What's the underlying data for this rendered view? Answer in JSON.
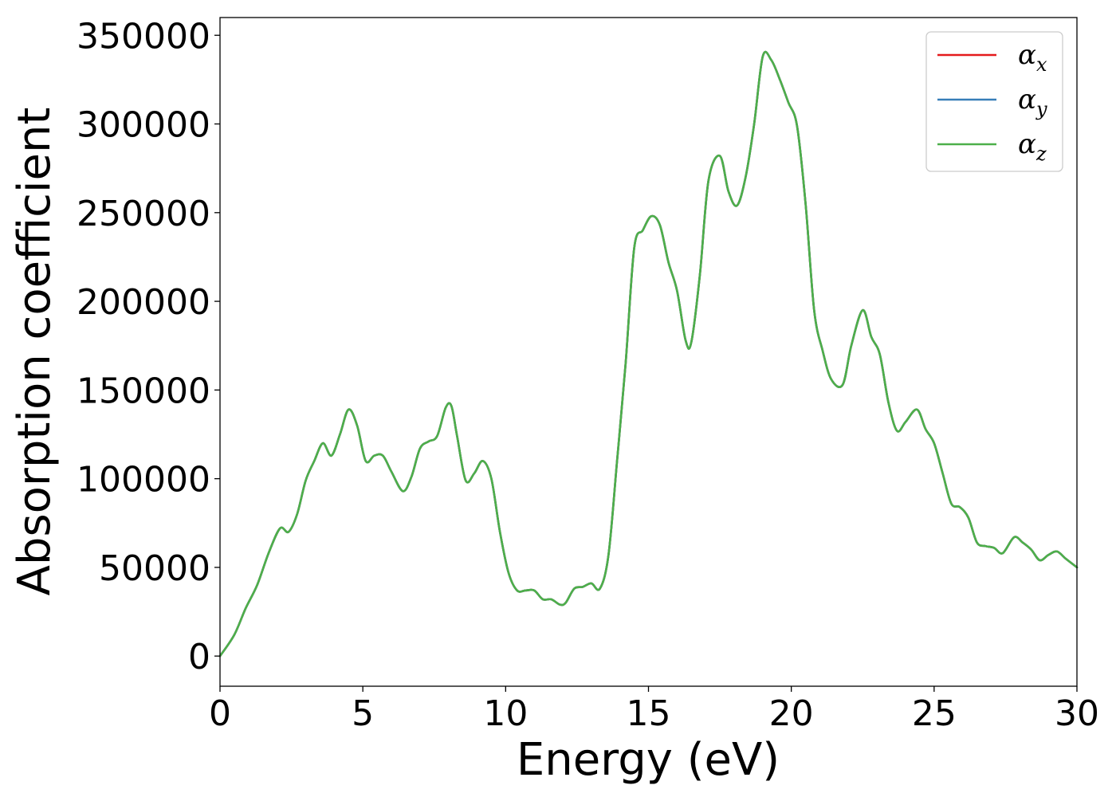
{
  "chart_data": {
    "type": "line",
    "xlabel": "Energy (eV)",
    "ylabel": "Absorption coefficient",
    "xlim": [
      0,
      30
    ],
    "ylim": [
      -17000,
      360000
    ],
    "xticks": [
      0,
      5,
      10,
      15,
      20,
      25,
      30
    ],
    "xtick_labels": [
      "0",
      "5",
      "10",
      "15",
      "20",
      "25",
      "30"
    ],
    "yticks": [
      0,
      50000,
      100000,
      150000,
      200000,
      250000,
      300000,
      350000
    ],
    "ytick_labels": [
      "0",
      "50000",
      "100000",
      "150000",
      "200000",
      "250000",
      "300000",
      "350000"
    ],
    "grid": false,
    "legend": {
      "position": "top-right",
      "entries": [
        {
          "symbol": "α",
          "sub": "x",
          "color": "#e41a1c"
        },
        {
          "symbol": "α",
          "sub": "y",
          "color": "#377eb8"
        },
        {
          "symbol": "α",
          "sub": "z",
          "color": "#4daf4a"
        }
      ]
    },
    "x": [
      0,
      0.5,
      0.9,
      1.3,
      1.7,
      2.1,
      2.4,
      2.7,
      3.0,
      3.3,
      3.6,
      3.9,
      4.2,
      4.5,
      4.8,
      5.1,
      5.4,
      5.7,
      6.0,
      6.4,
      6.7,
      7.0,
      7.3,
      7.6,
      7.9,
      8.1,
      8.3,
      8.6,
      8.9,
      9.2,
      9.5,
      9.8,
      10.1,
      10.4,
      10.7,
      11.0,
      11.3,
      11.6,
      11.9,
      12.1,
      12.4,
      12.7,
      13.0,
      13.3,
      13.6,
      13.9,
      14.2,
      14.5,
      14.8,
      15.1,
      15.4,
      15.7,
      16.0,
      16.3,
      16.5,
      16.8,
      17.1,
      17.5,
      17.8,
      18.1,
      18.4,
      18.7,
      19.0,
      19.3,
      19.6,
      19.9,
      20.2,
      20.5,
      20.8,
      21.1,
      21.4,
      21.8,
      22.1,
      22.5,
      22.8,
      23.1,
      23.4,
      23.7,
      24.0,
      24.4,
      24.7,
      25.0,
      25.3,
      25.6,
      25.9,
      26.2,
      26.5,
      26.8,
      27.1,
      27.4,
      27.8,
      28.1,
      28.4,
      28.7,
      29.0,
      29.3,
      29.6,
      30.0
    ],
    "series": [
      {
        "name": "α_x",
        "color": "#e41a1c",
        "values": [
          0,
          12000,
          27000,
          40000,
          58000,
          72000,
          70000,
          80000,
          99000,
          110000,
          120000,
          113000,
          125000,
          139000,
          130000,
          110000,
          113000,
          113000,
          104000,
          93000,
          101000,
          117000,
          121000,
          124000,
          140000,
          141000,
          124000,
          99000,
          103000,
          110000,
          100000,
          70000,
          47000,
          37000,
          37000,
          37000,
          32000,
          32000,
          29000,
          30000,
          38000,
          39000,
          41000,
          38000,
          57000,
          110000,
          165000,
          230000,
          240000,
          248000,
          243000,
          222000,
          206000,
          178000,
          177000,
          215000,
          268000,
          282000,
          262000,
          254000,
          270000,
          300000,
          338000,
          336000,
          325000,
          312000,
          299000,
          255000,
          195000,
          172000,
          156000,
          153000,
          175000,
          195000,
          180000,
          170000,
          143000,
          127000,
          132000,
          139000,
          128000,
          120000,
          103000,
          86000,
          84000,
          78000,
          64000,
          62000,
          61000,
          58000,
          67000,
          64000,
          60000,
          54000,
          57000,
          59000,
          55000,
          50000
        ]
      },
      {
        "name": "α_y",
        "color": "#377eb8",
        "values": [
          0,
          12000,
          27000,
          40000,
          58000,
          72000,
          70000,
          80000,
          99000,
          110000,
          120000,
          113000,
          125000,
          139000,
          130000,
          110000,
          113000,
          113000,
          104000,
          93000,
          101000,
          117000,
          121000,
          124000,
          140000,
          141000,
          124000,
          99000,
          103000,
          110000,
          100000,
          70000,
          47000,
          37000,
          37000,
          37000,
          32000,
          32000,
          29000,
          30000,
          38000,
          39000,
          41000,
          38000,
          57000,
          110000,
          165000,
          230000,
          240000,
          248000,
          243000,
          222000,
          206000,
          178000,
          177000,
          215000,
          268000,
          282000,
          262000,
          254000,
          270000,
          300000,
          338000,
          336000,
          325000,
          312000,
          299000,
          255000,
          195000,
          172000,
          156000,
          153000,
          175000,
          195000,
          180000,
          170000,
          143000,
          127000,
          132000,
          139000,
          128000,
          120000,
          103000,
          86000,
          84000,
          78000,
          64000,
          62000,
          61000,
          58000,
          67000,
          64000,
          60000,
          54000,
          57000,
          59000,
          55000,
          50000
        ]
      },
      {
        "name": "α_z",
        "color": "#4daf4a",
        "values": [
          0,
          12000,
          27000,
          40000,
          58000,
          72000,
          70000,
          80000,
          99000,
          110000,
          120000,
          113000,
          125000,
          139000,
          130000,
          110000,
          113000,
          113000,
          104000,
          93000,
          101000,
          117000,
          121000,
          124000,
          140000,
          141000,
          124000,
          99000,
          103000,
          110000,
          100000,
          70000,
          47000,
          37000,
          37000,
          37000,
          32000,
          32000,
          29000,
          30000,
          38000,
          39000,
          41000,
          38000,
          57000,
          110000,
          165000,
          230000,
          240000,
          248000,
          243000,
          222000,
          206000,
          178000,
          177000,
          215000,
          268000,
          282000,
          262000,
          254000,
          270000,
          300000,
          338000,
          336000,
          325000,
          312000,
          299000,
          255000,
          195000,
          172000,
          156000,
          153000,
          175000,
          195000,
          180000,
          170000,
          143000,
          127000,
          132000,
          139000,
          128000,
          120000,
          103000,
          86000,
          84000,
          78000,
          64000,
          62000,
          61000,
          58000,
          67000,
          64000,
          60000,
          54000,
          57000,
          59000,
          55000,
          50000
        ]
      }
    ]
  }
}
